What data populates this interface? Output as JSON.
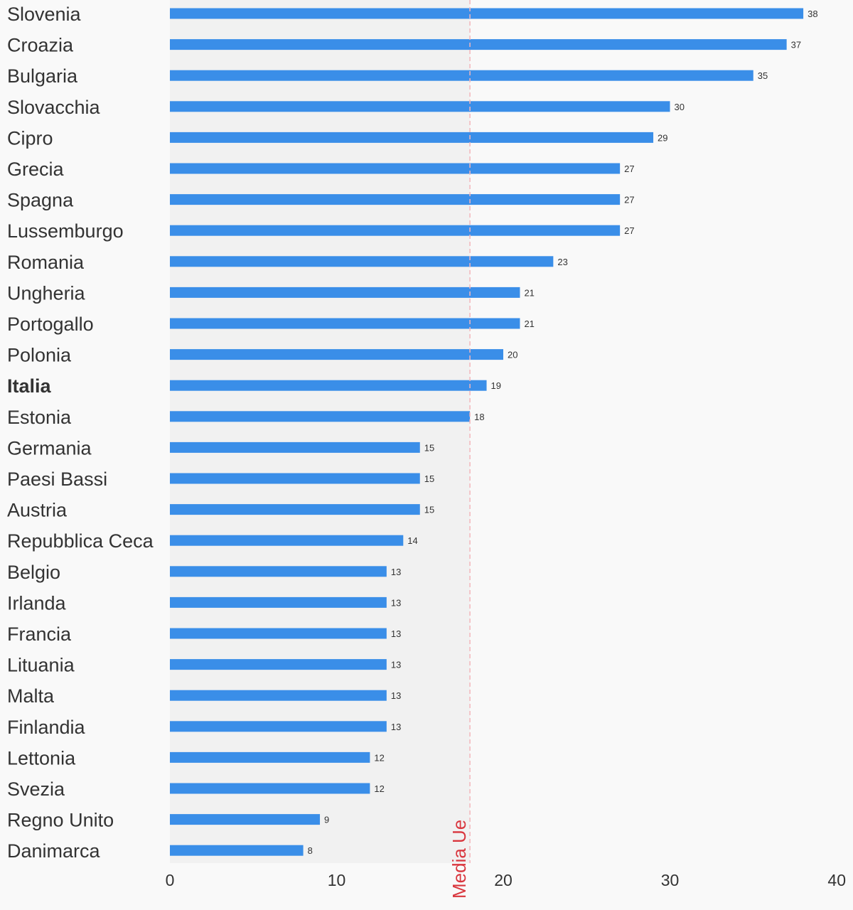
{
  "chart_data": {
    "type": "bar",
    "orientation": "horizontal",
    "categories": [
      "Slovenia",
      "Croazia",
      "Bulgaria",
      "Slovacchia",
      "Cipro",
      "Grecia",
      "Spagna",
      "Lussemburgo",
      "Romania",
      "Ungheria",
      "Portogallo",
      "Polonia",
      "Italia",
      "Estonia",
      "Germania",
      "Paesi Bassi",
      "Austria",
      "Repubblica Ceca",
      "Belgio",
      "Irlanda",
      "Francia",
      "Lituania",
      "Malta",
      "Finlandia",
      "Lettonia",
      "Svezia",
      "Regno Unito",
      "Danimarca"
    ],
    "values": [
      38,
      37,
      35,
      30,
      29,
      27,
      27,
      27,
      23,
      21,
      21,
      20,
      19,
      18,
      15,
      15,
      15,
      14,
      13,
      13,
      13,
      13,
      13,
      13,
      12,
      12,
      9,
      8
    ],
    "highlighted_category": "Italia",
    "reference_line": {
      "label": "Media Ue",
      "value": 18,
      "color": "#d9363e"
    },
    "xlim": [
      0,
      40
    ],
    "xticks": [
      0,
      10,
      20,
      30,
      40
    ],
    "grid": false,
    "data_labels": true,
    "colors": {
      "bar": "#3a8ee8",
      "below_reference_band": "#f1f1f1",
      "reference": "#d9363e",
      "text": "#333333",
      "background": "#f9f9f9"
    }
  }
}
